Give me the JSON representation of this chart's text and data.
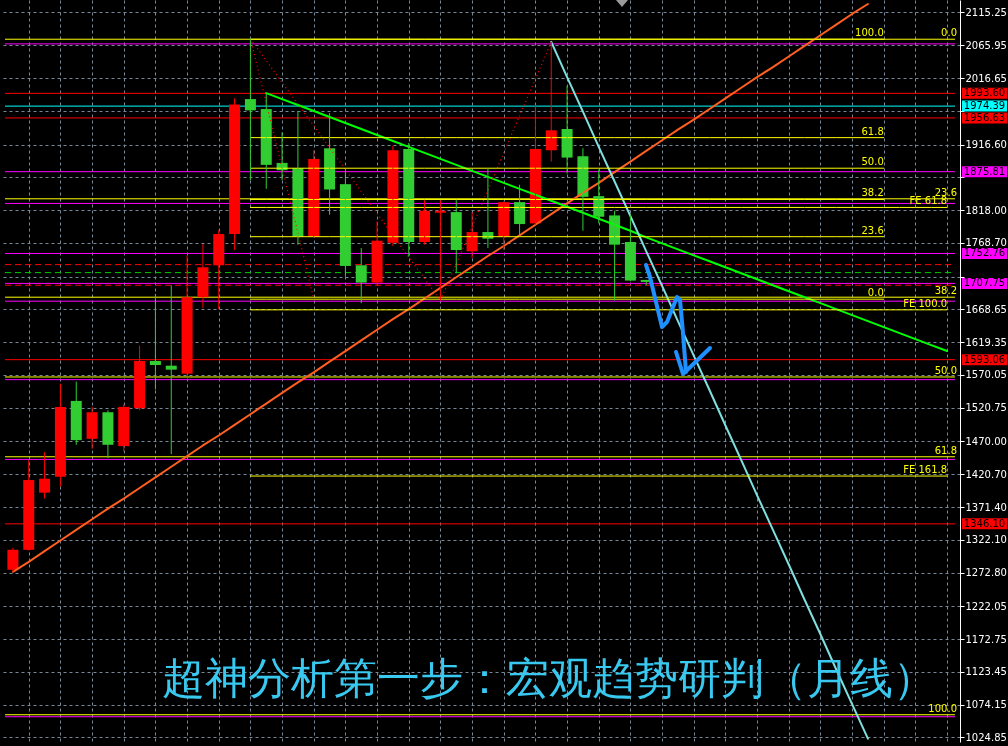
{
  "chart_data": {
    "type": "candlestick",
    "title": "超神分析第一步：宏观趋势研判（月线）",
    "categories": [
      null,
      null,
      null,
      null,
      null,
      null,
      null,
      null,
      null,
      null,
      null,
      null,
      null,
      null,
      null,
      null,
      null,
      null,
      null,
      null,
      null,
      null,
      null,
      null,
      null,
      null,
      null,
      null,
      null,
      null,
      null,
      null,
      null,
      null,
      null,
      null,
      null,
      null,
      null,
      null,
      null,
      null,
      null,
      null,
      null,
      null,
      null,
      null,
      null,
      null,
      null,
      null,
      null,
      null,
      null,
      null,
      null,
      null,
      null,
      null
    ],
    "ohlc": [
      [
        1277,
        1310,
        1274,
        1307
      ],
      [
        1307,
        1442,
        1306,
        1412
      ],
      [
        1393,
        1454,
        1384,
        1414
      ],
      [
        1417,
        1557,
        1402,
        1522
      ],
      [
        1531,
        1560,
        1465,
        1472
      ],
      [
        1474,
        1522,
        1459,
        1514
      ],
      [
        1514,
        1517,
        1445,
        1465
      ],
      [
        1463,
        1526,
        1455,
        1522
      ],
      [
        1520,
        1614,
        1517,
        1591
      ],
      [
        1591,
        1692,
        1548,
        1585
      ],
      [
        1584,
        1705,
        1451,
        1578
      ],
      [
        1572,
        1750,
        1570,
        1687
      ],
      [
        1687,
        1767,
        1671,
        1732
      ],
      [
        1735,
        1788,
        1669,
        1782
      ],
      [
        1782,
        1986,
        1758,
        1977
      ],
      [
        1985,
        2076,
        1863,
        1968
      ],
      [
        1970,
        1994,
        1850,
        1886
      ],
      [
        1889,
        1935,
        1863,
        1878
      ],
      [
        1881,
        1967,
        1766,
        1778
      ],
      [
        1778,
        1908,
        1776,
        1895
      ],
      [
        1911,
        1964,
        1811,
        1849
      ],
      [
        1857,
        1876,
        1718,
        1734
      ],
      [
        1735,
        1761,
        1678,
        1709
      ],
      [
        1709,
        1801,
        1705,
        1772
      ],
      [
        1769,
        1915,
        1764,
        1908
      ],
      [
        1910,
        1919,
        1748,
        1770
      ],
      [
        1770,
        1833,
        1766,
        1817
      ],
      [
        1814,
        1833,
        1682,
        1817
      ],
      [
        1815,
        1833,
        1723,
        1758
      ],
      [
        1756,
        1815,
        1746,
        1785
      ],
      [
        1785,
        1881,
        1761,
        1775
      ],
      [
        1778,
        1831,
        1758,
        1830
      ],
      [
        1830,
        1856,
        1779,
        1797
      ],
      [
        1798,
        1976,
        1796,
        1910
      ],
      [
        1908,
        2071,
        1891,
        1938
      ],
      [
        1940,
        2005,
        1873,
        1897
      ],
      [
        1899,
        1911,
        1787,
        1838
      ],
      [
        1839,
        1879,
        1798,
        1808
      ],
      [
        1810,
        1817,
        1682,
        1766
      ],
      [
        1770,
        1811,
        1711,
        1712
      ],
      [
        1713,
        1713,
        1705,
        1710
      ],
      null,
      null,
      null,
      null,
      null,
      null,
      null,
      null,
      null,
      null,
      null,
      null,
      null,
      null,
      null,
      null,
      null,
      null,
      null
    ],
    "colors": [
      "#ff0000",
      "#ff0000",
      "#ff0000",
      "#ff0000",
      "#32cd32",
      "#ff0000",
      "#32cd32",
      "#ff0000",
      "#ff0000",
      "#32cd32",
      "#32cd32",
      "#ff0000",
      "#ff0000",
      "#ff0000",
      "#ff0000",
      "#32cd32",
      "#32cd32",
      "#32cd32",
      "#32cd32",
      "#ff0000",
      "#32cd32",
      "#32cd32",
      "#32cd32",
      "#ff0000",
      "#ff0000",
      "#32cd32",
      "#ff0000",
      "#ff0000",
      "#32cd32",
      "#ff0000",
      "#32cd32",
      "#ff0000",
      "#32cd32",
      "#ff0000",
      "#ff0000",
      "#32cd32",
      "#32cd32",
      "#32cd32",
      "#32cd32",
      "#32cd32",
      "#32cd32",
      null,
      null,
      null,
      null,
      null,
      null,
      null,
      null,
      null,
      null,
      null,
      null,
      null,
      null,
      null,
      null,
      null,
      null,
      null
    ],
    "series": [
      {
        "type": "line",
        "color": "#ff5f1f",
        "values": [
          1274,
          1289,
          1305,
          1321,
          1337,
          1353,
          1369,
          1384,
          1400,
          1416,
          1432,
          1448,
          1464,
          1479,
          1495,
          1511,
          1527,
          1543,
          1559,
          1574,
          1590,
          1606,
          1622,
          1638,
          1654,
          1669,
          1685,
          1701,
          1717,
          1733,
          1749,
          1764,
          1780,
          1796,
          1812,
          1828,
          1844,
          1859,
          1875,
          1891,
          1907,
          1923,
          1939,
          1954,
          1970,
          1986,
          2002,
          2018,
          2033,
          2049,
          2065,
          2081,
          2097,
          2113,
          2128,
          null,
          null,
          null,
          null,
          null
        ]
      },
      {
        "type": "line",
        "color": "#00ff00",
        "values": [
          null,
          null,
          null,
          null,
          null,
          null,
          null,
          null,
          null,
          null,
          null,
          null,
          null,
          null,
          null,
          null,
          1994,
          1985,
          1976,
          1967,
          1958,
          1949,
          1940,
          1931,
          1922,
          1913,
          1904,
          1895,
          1886,
          1877,
          1868,
          1859,
          1850,
          1841,
          1832,
          1823,
          1814,
          1805,
          1796,
          1787,
          1777,
          1768,
          1759,
          1750,
          1741,
          1732,
          1723,
          1714,
          1705,
          1696,
          1687,
          1678,
          1669,
          1660,
          1651,
          1642,
          1633,
          1624,
          1615,
          1606
        ]
      },
      {
        "type": "line",
        "color": "#7fe0e0",
        "values": [
          null,
          null,
          null,
          null,
          null,
          null,
          null,
          null,
          null,
          null,
          null,
          null,
          null,
          null,
          null,
          null,
          null,
          null,
          null,
          null,
          null,
          null,
          null,
          null,
          null,
          null,
          null,
          null,
          null,
          null,
          null,
          null,
          null,
          null,
          2071,
          2018,
          1966,
          1913,
          1861,
          1809,
          1756,
          1704,
          1651,
          1599,
          1547,
          1494,
          1442,
          1389,
          1337,
          1285,
          1232,
          1180,
          1127,
          1075,
          1023,
          null,
          null,
          null,
          null,
          null
        ]
      },
      {
        "type": "line",
        "color": "#ff0000",
        "line_style": "dotted",
        "values": [
          null,
          null,
          null,
          null,
          null,
          null,
          null,
          null,
          null,
          null,
          null,
          null,
          null,
          null,
          null,
          2076,
          1979,
          1881,
          1784,
          1684,
          null,
          null,
          null,
          null,
          null,
          null,
          null,
          null,
          null,
          null,
          null,
          null,
          null,
          null,
          null,
          null,
          null,
          null,
          null,
          null,
          null,
          null,
          null,
          null,
          null,
          null,
          null,
          null,
          null,
          null,
          null,
          null,
          null,
          null,
          null,
          null,
          null,
          null,
          null,
          null
        ]
      },
      {
        "type": "line",
        "color": "#ff0000",
        "line_style": "dotted",
        "values": [
          null,
          null,
          null,
          null,
          null,
          null,
          null,
          null,
          null,
          null,
          null,
          null,
          null,
          null,
          null,
          2076,
          2043,
          2010,
          1977,
          1945,
          1912,
          1879,
          1846,
          1813,
          1780,
          1747,
          1715,
          1682,
          1737,
          1793,
          1848,
          1904,
          1960,
          2015,
          2071,
          null,
          null,
          null,
          null,
          null,
          null,
          null,
          null,
          null,
          null,
          null,
          null,
          null,
          null,
          null,
          null,
          null,
          null,
          null,
          null,
          null,
          null,
          null,
          null,
          null
        ]
      },
      {
        "type": "line",
        "name": "100.0",
        "color": "#ffff00",
        "values": [
          null,
          null,
          null,
          null,
          null,
          null,
          null,
          null,
          null,
          null,
          null,
          null,
          null,
          null,
          null,
          2075,
          2075,
          2075,
          2075,
          2075,
          2075,
          2075,
          2075,
          2075,
          2075,
          2075,
          2075,
          2075,
          2075,
          2075,
          2075,
          2075,
          2075,
          2075,
          2075,
          2075,
          2075,
          2075,
          2075,
          2075,
          2075,
          2075,
          2075,
          2075,
          2075,
          2075,
          2075,
          2075,
          2075,
          2075,
          2075,
          2075,
          2075,
          2075,
          2075,
          2075,
          null,
          null,
          null,
          null
        ]
      },
      {
        "type": "line",
        "name": "61.8",
        "color": "#ffff00",
        "values": [
          null,
          null,
          null,
          null,
          null,
          null,
          null,
          null,
          null,
          null,
          null,
          null,
          null,
          null,
          null,
          1927,
          1927,
          1927,
          1927,
          1927,
          1927,
          1927,
          1927,
          1927,
          1927,
          1927,
          1927,
          1927,
          1927,
          1927,
          1927,
          1927,
          1927,
          1927,
          1927,
          1927,
          1927,
          1927,
          1927,
          1927,
          1927,
          1927,
          1927,
          1927,
          1927,
          1927,
          1927,
          1927,
          1927,
          1927,
          1927,
          1927,
          1927,
          1927,
          1927,
          1927,
          null,
          null,
          null,
          null
        ]
      },
      {
        "type": "line",
        "name": "50.0",
        "color": "#ffff00",
        "values": [
          null,
          null,
          null,
          null,
          null,
          null,
          null,
          null,
          null,
          null,
          null,
          null,
          null,
          null,
          null,
          1881,
          1881,
          1881,
          1881,
          1881,
          1881,
          1881,
          1881,
          1881,
          1881,
          1881,
          1881,
          1881,
          1881,
          1881,
          1881,
          1881,
          1881,
          1881,
          1881,
          1881,
          1881,
          1881,
          1881,
          1881,
          1881,
          1881,
          1881,
          1881,
          1881,
          1881,
          1881,
          1881,
          1881,
          1881,
          1881,
          1881,
          1881,
          1881,
          1881,
          1881,
          null,
          null,
          null,
          null
        ]
      },
      {
        "type": "line",
        "name": "38.2",
        "color": "#ffff00",
        "values": [
          null,
          null,
          null,
          null,
          null,
          null,
          null,
          null,
          null,
          null,
          null,
          null,
          null,
          null,
          null,
          1834,
          1834,
          1834,
          1834,
          1834,
          1834,
          1834,
          1834,
          1834,
          1834,
          1834,
          1834,
          1834,
          1834,
          1834,
          1834,
          1834,
          1834,
          1834,
          1834,
          1834,
          1834,
          1834,
          1834,
          1834,
          1834,
          1834,
          1834,
          1834,
          1834,
          1834,
          1834,
          1834,
          1834,
          1834,
          1834,
          1834,
          1834,
          1834,
          1834,
          1834,
          null,
          null,
          null,
          null
        ]
      },
      {
        "type": "line",
        "name": "23.6",
        "color": "#ffff00",
        "values": [
          null,
          null,
          null,
          null,
          null,
          null,
          null,
          null,
          null,
          null,
          null,
          null,
          null,
          null,
          null,
          1778,
          1778,
          1778,
          1778,
          1778,
          1778,
          1778,
          1778,
          1778,
          1778,
          1778,
          1778,
          1778,
          1778,
          1778,
          1778,
          1778,
          1778,
          1778,
          1778,
          1778,
          1778,
          1778,
          1778,
          1778,
          1778,
          1778,
          1778,
          1778,
          1778,
          1778,
          1778,
          1778,
          1778,
          1778,
          1778,
          1778,
          1778,
          1778,
          1778,
          1778,
          null,
          null,
          null,
          null
        ]
      },
      {
        "type": "line",
        "name": "0.0",
        "color": "#ffff00",
        "values": [
          null,
          null,
          null,
          null,
          null,
          null,
          null,
          null,
          null,
          null,
          null,
          null,
          null,
          null,
          null,
          1684,
          1684,
          1684,
          1684,
          1684,
          1684,
          1684,
          1684,
          1684,
          1684,
          1684,
          1684,
          1684,
          1684,
          1684,
          1684,
          1684,
          1684,
          1684,
          1684,
          1684,
          1684,
          1684,
          1684,
          1684,
          1684,
          1684,
          1684,
          1684,
          1684,
          1684,
          1684,
          1684,
          1684,
          1684,
          1684,
          1684,
          1684,
          1684,
          1684,
          1684,
          null,
          null,
          null,
          null
        ]
      },
      {
        "type": "line",
        "name": "FE 61.8",
        "color": "#ffff00",
        "values": [
          null,
          null,
          null,
          null,
          null,
          null,
          null,
          null,
          null,
          null,
          null,
          null,
          null,
          null,
          null,
          1822,
          1822,
          1822,
          1822,
          1822,
          1822,
          1822,
          1822,
          1822,
          1822,
          1822,
          1822,
          1822,
          1822,
          1822,
          1822,
          1822,
          1822,
          1822,
          1822,
          1822,
          1822,
          1822,
          1822,
          1822,
          1822,
          1822,
          1822,
          1822,
          1822,
          1822,
          1822,
          1822,
          1822,
          1822,
          1822,
          1822,
          1822,
          1822,
          1822,
          1822,
          1822,
          1822,
          1822,
          1822
        ]
      },
      {
        "type": "line",
        "name": "FE 100.0",
        "color": "#ffff00",
        "values": [
          null,
          null,
          null,
          null,
          null,
          null,
          null,
          null,
          null,
          null,
          null,
          null,
          null,
          null,
          null,
          1668,
          1668,
          1668,
          1668,
          1668,
          1668,
          1668,
          1668,
          1668,
          1668,
          1668,
          1668,
          1668,
          1668,
          1668,
          1668,
          1668,
          1668,
          1668,
          1668,
          1668,
          1668,
          1668,
          1668,
          1668,
          1668,
          1668,
          1668,
          1668,
          1668,
          1668,
          1668,
          1668,
          1668,
          1668,
          1668,
          1668,
          1668,
          1668,
          1668,
          1668,
          1668,
          1668,
          1668,
          1668
        ]
      },
      {
        "type": "line",
        "name": "FE 161.8",
        "color": "#ffff00",
        "values": [
          null,
          null,
          null,
          null,
          null,
          null,
          null,
          null,
          null,
          null,
          null,
          null,
          null,
          null,
          null,
          1418,
          1418,
          1418,
          1418,
          1418,
          1418,
          1418,
          1418,
          1418,
          1418,
          1418,
          1418,
          1418,
          1418,
          1418,
          1418,
          1418,
          1418,
          1418,
          1418,
          1418,
          1418,
          1418,
          1418,
          1418,
          1418,
          1418,
          1418,
          1418,
          1418,
          1418,
          1418,
          1418,
          1418,
          1418,
          1418,
          1418,
          1418,
          1418,
          1418,
          1418,
          1418,
          1418,
          1418,
          1418
        ]
      }
    ],
    "ylim": [
      1018,
      2134
    ],
    "yticks": [
      {
        "value": 2115.25,
        "label": "2115.25"
      },
      {
        "value": 2065.95,
        "label": "2065.95"
      },
      {
        "value": 2016.65,
        "label": "2016.65"
      },
      {
        "value": 1967.35,
        "label": null
      },
      {
        "value": 1916.6,
        "label": "1916.60"
      },
      {
        "value": 1867.3,
        "label": null
      },
      {
        "value": 1818,
        "label": "1818.00"
      },
      {
        "value": 1768.7,
        "label": "1768.70"
      },
      {
        "value": 1717.85,
        "label": null
      },
      {
        "value": 1668.65,
        "label": "1668.65"
      },
      {
        "value": 1619.35,
        "label": "1619.35"
      },
      {
        "value": 1570.05,
        "label": "1570.05"
      },
      {
        "value": 1520.75,
        "label": "1520.75"
      },
      {
        "value": 1470,
        "label": "1470.00"
      },
      {
        "value": 1420.7,
        "label": "1420.70"
      },
      {
        "value": 1371.4,
        "label": "1371.40"
      },
      {
        "value": 1322.1,
        "label": "1322.10"
      },
      {
        "value": 1272.8,
        "label": "1272.80"
      },
      {
        "value": 1222.05,
        "label": "1222.05"
      },
      {
        "value": 1172.75,
        "label": "1172.75"
      },
      {
        "value": 1123.45,
        "label": "1123.45"
      },
      {
        "value": 1074.15,
        "label": "1074.15"
      },
      {
        "value": 1024.85,
        "label": "1024.85"
      }
    ],
    "grid": true,
    "tick_labels": "y",
    "ref_lines": [
      {
        "axis": "y",
        "value": 2068,
        "color": "#ff00ff"
      },
      {
        "axis": "y",
        "value": 1828,
        "color": "#ff00ff"
      },
      {
        "axis": "y",
        "value": 1681,
        "color": "#ff00ff"
      },
      {
        "axis": "y",
        "value": 1563,
        "color": "#ff00ff"
      },
      {
        "axis": "y",
        "value": 1443,
        "color": "#ff00ff"
      },
      {
        "axis": "y",
        "value": 1056,
        "color": "#ff00ff"
      },
      {
        "axis": "y",
        "value": 2075,
        "color": "#ffff00"
      },
      {
        "axis": "y",
        "value": 1835,
        "color": "#ffff00"
      },
      {
        "axis": "y",
        "value": 1687,
        "color": "#ffff00"
      },
      {
        "axis": "y",
        "value": 1567,
        "color": "#ffff00"
      },
      {
        "axis": "y",
        "value": 1447,
        "color": "#ffff00"
      },
      {
        "axis": "y",
        "value": 1059,
        "color": "#ffff00"
      },
      {
        "axis": "y",
        "value": 1736,
        "color": "#ff0000",
        "line_style": "dashed"
      },
      {
        "axis": "y",
        "value": 1724,
        "color": "#00c800",
        "line_style": "dashed"
      },
      {
        "axis": "y",
        "value": 1705,
        "color": "#ff0000",
        "line_style": "dashed"
      },
      {
        "axis": "y",
        "value": 1993.6,
        "label": "1993.60",
        "color": "#ff0000"
      },
      {
        "axis": "y",
        "value": 1974.39,
        "label": "1974.39",
        "color": "#00ffff"
      },
      {
        "axis": "y",
        "value": 1956.63,
        "label": "1956.63",
        "color": "#ff0000"
      },
      {
        "axis": "y",
        "value": 1875.81,
        "label": "1875.81",
        "color": "#ff00ff"
      },
      {
        "axis": "y",
        "value": 1752.76,
        "label": "1752.76",
        "color": "#ff00ff"
      },
      {
        "axis": "y",
        "value": 1707.75,
        "label": "1707.75",
        "color": "#ff00ff"
      },
      {
        "axis": "y",
        "value": 1593.06,
        "label": "1593.06",
        "color": "#ff0000"
      },
      {
        "axis": "y",
        "value": 1346.1,
        "label": "1346.10",
        "color": "#ff0000"
      }
    ],
    "annotations": [
      {
        "text": "0.0",
        "y": 2075
      },
      {
        "text": "23.6",
        "y": 1835
      },
      {
        "text": "38.2",
        "y": 1687
      },
      {
        "text": "50.0",
        "y": 1567
      },
      {
        "text": "61.8",
        "y": 1447
      },
      {
        "text": "100.0",
        "y": 1059
      }
    ]
  }
}
